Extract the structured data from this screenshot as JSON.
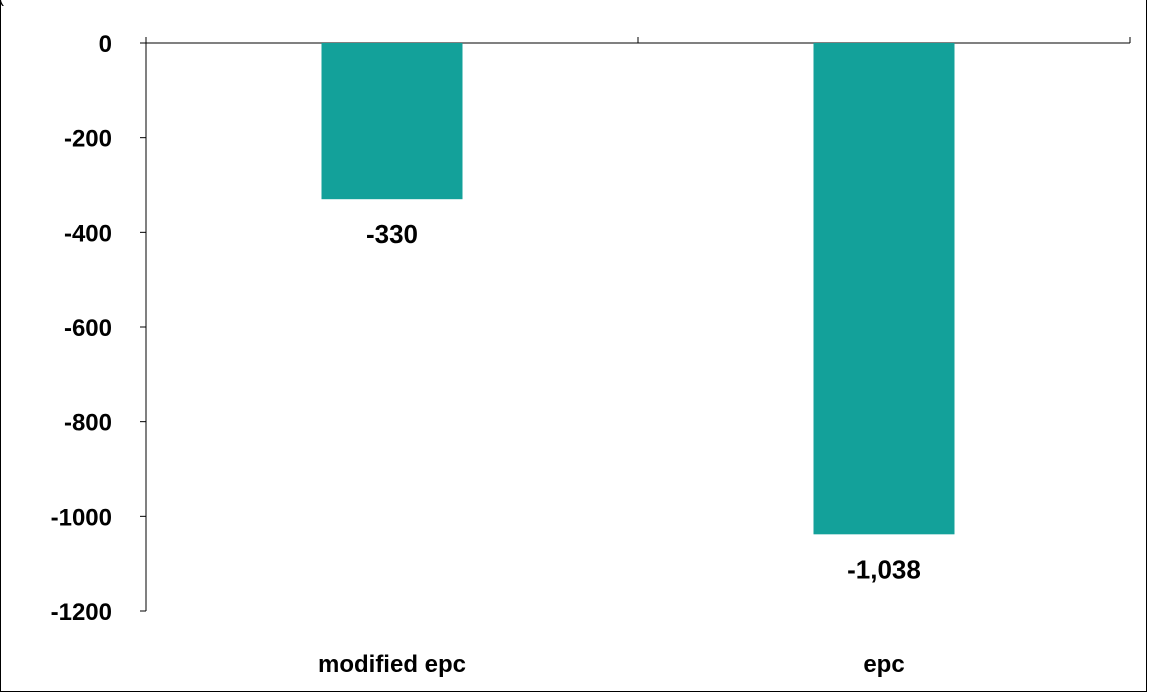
{
  "top_note": "(",
  "chart_data": {
    "type": "bar",
    "categories": [
      "modified epc",
      "epc"
    ],
    "values": [
      -330,
      -1038
    ],
    "data_labels": [
      "-330",
      "-1,038"
    ],
    "ylim": [
      -1200,
      0
    ],
    "yticks": [
      0,
      -200,
      -400,
      -600,
      -800,
      -1000,
      -1200
    ],
    "ytick_labels": [
      "0",
      "-200",
      "-400",
      "-600",
      "-800",
      "-1000",
      "-1200"
    ],
    "bar_color": "#13a19a",
    "grid": false,
    "legend": "none"
  }
}
